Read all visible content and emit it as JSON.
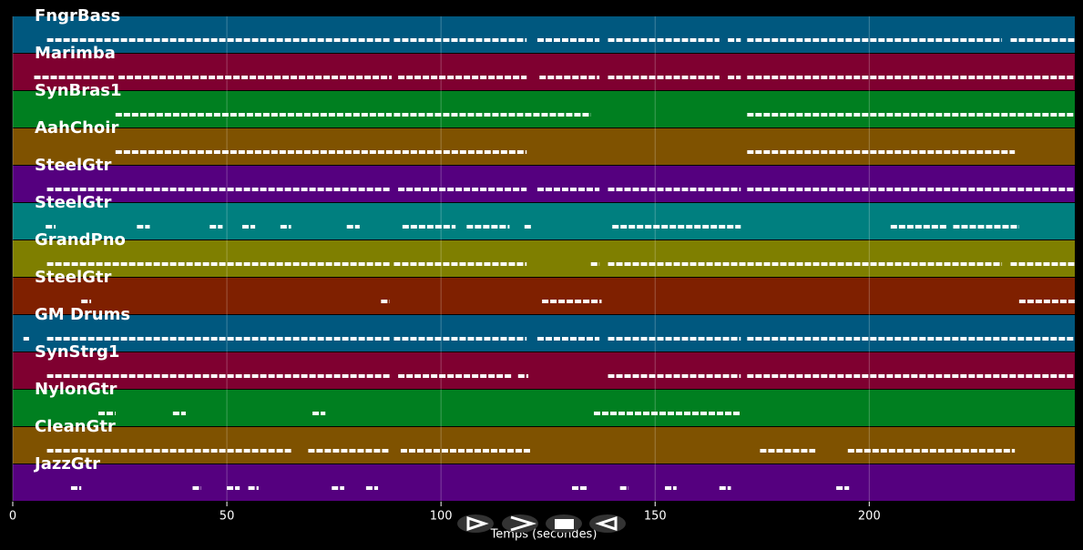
{
  "chart_data": {
    "type": "timeline",
    "xlabel": "Temps (secondes)",
    "xlim": [
      0,
      248
    ],
    "xticks": [
      0,
      50,
      100,
      150,
      200
    ],
    "grid": true,
    "series": [
      {
        "name": "FngrBass",
        "color": "#00587f",
        "segments": [
          [
            8,
            88
          ],
          [
            89,
            120
          ],
          [
            122.5,
            137
          ],
          [
            139,
            165
          ],
          [
            167,
            170
          ],
          [
            171.5,
            231
          ],
          [
            233,
            248
          ]
        ]
      },
      {
        "name": "Marimba",
        "color": "#7f0030",
        "segments": [
          [
            5,
            23.6
          ],
          [
            24.7,
            88.5
          ],
          [
            90,
            120
          ],
          [
            123,
            137
          ],
          [
            139,
            165
          ],
          [
            167,
            170
          ],
          [
            171.5,
            248
          ]
        ]
      },
      {
        "name": "SynBras1",
        "color": "#007f20",
        "segments": [
          [
            24,
            88.5
          ],
          [
            89,
            135
          ],
          [
            171.5,
            248
          ]
        ]
      },
      {
        "name": "AahChoir",
        "color": "#7f5200",
        "segments": [
          [
            24,
            120
          ],
          [
            171.5,
            234
          ]
        ]
      },
      {
        "name": "SteelGtr",
        "color": "#55007f",
        "segments": [
          [
            8,
            88
          ],
          [
            90,
            120
          ],
          [
            122.5,
            137
          ],
          [
            139,
            170
          ],
          [
            171.5,
            248
          ]
        ]
      },
      {
        "name": "SteelGtr",
        "color": "#007f7f",
        "segments": [
          [
            7.7,
            10
          ],
          [
            29,
            32
          ],
          [
            46,
            49
          ],
          [
            53.6,
            56.6
          ],
          [
            62.5,
            65
          ],
          [
            78,
            81
          ],
          [
            91,
            103.4
          ],
          [
            106,
            116
          ],
          [
            119.5,
            121
          ],
          [
            140,
            170
          ],
          [
            205,
            218
          ],
          [
            219.6,
            235
          ]
        ]
      },
      {
        "name": "GrandPno",
        "color": "#7f7f00",
        "segments": [
          [
            8,
            88
          ],
          [
            89,
            120
          ],
          [
            135,
            137
          ],
          [
            139,
            231
          ],
          [
            233,
            248
          ]
        ]
      },
      {
        "name": "SteelGtr",
        "color": "#7f2000",
        "segments": [
          [
            16,
            18.3
          ],
          [
            86,
            88
          ],
          [
            123.6,
            137.5
          ],
          [
            235,
            248
          ]
        ]
      },
      {
        "name": "GM Drums",
        "color": "#00587f",
        "segments": [
          [
            2.5,
            3.8
          ],
          [
            8,
            88
          ],
          [
            89,
            120
          ],
          [
            122.5,
            137
          ],
          [
            139,
            170
          ],
          [
            171.5,
            248
          ]
        ]
      },
      {
        "name": "SynStrg1",
        "color": "#7f0030",
        "segments": [
          [
            8,
            88
          ],
          [
            90,
            116.6
          ],
          [
            118,
            120.4
          ],
          [
            139,
            170
          ],
          [
            171.5,
            248
          ]
        ]
      },
      {
        "name": "NylonGtr",
        "color": "#007f20",
        "segments": [
          [
            20,
            24
          ],
          [
            37.4,
            40.4
          ],
          [
            70,
            73
          ],
          [
            135.7,
            170
          ]
        ]
      },
      {
        "name": "CleanGtr",
        "color": "#7f5200",
        "segments": [
          [
            8,
            65
          ],
          [
            69,
            88
          ],
          [
            90.6,
            121
          ],
          [
            174.5,
            187.4
          ],
          [
            195,
            234
          ]
        ]
      },
      {
        "name": "JazzGtr",
        "color": "#55007f",
        "segments": [
          [
            13.6,
            16
          ],
          [
            42,
            44
          ],
          [
            50,
            53
          ],
          [
            55,
            57.4
          ],
          [
            74.5,
            77.4
          ],
          [
            82.5,
            85.3
          ],
          [
            130.6,
            134
          ],
          [
            141.8,
            143.8
          ],
          [
            152.3,
            155
          ],
          [
            165,
            167.7
          ],
          [
            192.3,
            195.3
          ]
        ]
      }
    ]
  }
}
